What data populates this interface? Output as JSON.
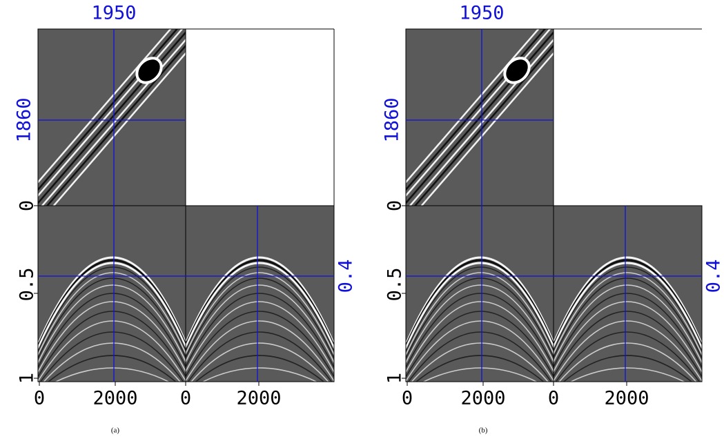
{
  "figures": [
    {
      "caption": "(a)",
      "top_label": "1950",
      "left_label": "1860",
      "right_label": "0.4",
      "y_ticks": [
        "0",
        "0.5",
        "1"
      ],
      "x_ticks": [
        "0",
        "2000",
        "0",
        "2000"
      ]
    },
    {
      "caption": "(b)",
      "top_label": "1950",
      "left_label": "1860",
      "right_label": "0.4",
      "y_ticks": [
        "0",
        "0.5",
        "1"
      ],
      "x_ticks": [
        "0",
        "2000",
        "0",
        "2000"
      ]
    }
  ]
}
